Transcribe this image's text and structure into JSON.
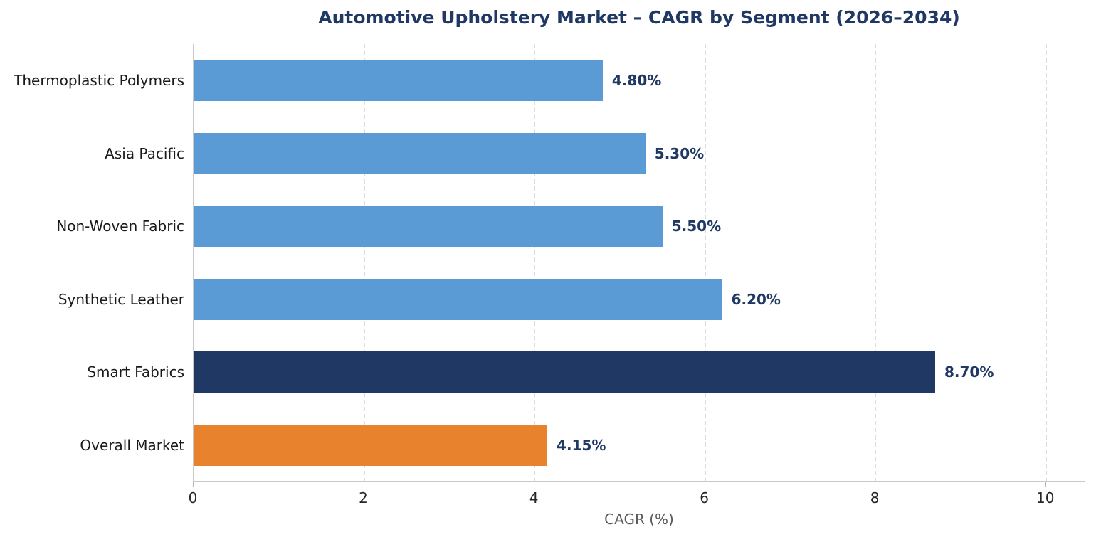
{
  "title": "Automotive Upholstery Market – CAGR by Segment (2026–2034)",
  "chart_data": {
    "type": "bar",
    "orientation": "horizontal",
    "title": "Automotive Upholstery Market – CAGR by Segment (2026–2034)",
    "categories": [
      "Thermoplastic Polymers",
      "Asia Pacific",
      "Non-Woven Fabric",
      "Synthetic Leather",
      "Smart Fabrics",
      "Overall Market"
    ],
    "values": [
      4.8,
      5.3,
      5.5,
      6.2,
      8.7,
      4.15
    ],
    "value_labels": [
      "4.80%",
      "5.30%",
      "5.50%",
      "6.20%",
      "8.70%",
      "4.15%"
    ],
    "bar_colors": [
      "#5b9bd5",
      "#5b9bd5",
      "#5b9bd5",
      "#5b9bd5",
      "#1f3864",
      "#e8822d"
    ],
    "xlabel": "CAGR (%)",
    "ylabel": "",
    "xticks": [
      0,
      2,
      4,
      6,
      8,
      10
    ],
    "xlim": [
      0,
      10.47
    ],
    "grid": "vertical-dashed",
    "legend": "none",
    "colors": {
      "title": "#1f3864",
      "value_label": "#1f3864",
      "category_label": "#1a1a1a",
      "tick_label": "#262626",
      "axis_label": "#595959",
      "spine": "#c9c9c9",
      "gridline": "#dcdcdc"
    }
  }
}
